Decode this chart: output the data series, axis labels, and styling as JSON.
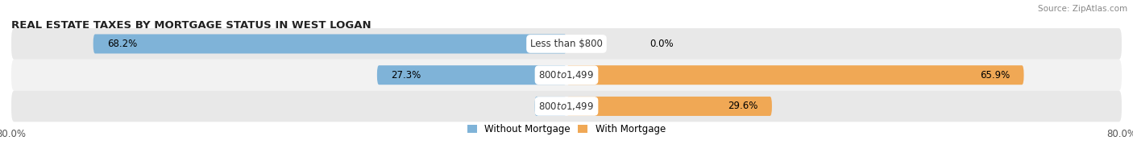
{
  "title": "REAL ESTATE TAXES BY MORTGAGE STATUS IN WEST LOGAN",
  "source": "Source: ZipAtlas.com",
  "rows": [
    {
      "label": "Less than $800",
      "without_mortgage": 68.2,
      "with_mortgage": 0.0,
      "without_label": "68.2%",
      "with_label": "0.0%"
    },
    {
      "label": "$800 to $1,499",
      "without_mortgage": 27.3,
      "with_mortgage": 65.9,
      "without_label": "27.3%",
      "with_label": "65.9%"
    },
    {
      "label": "$800 to $1,499",
      "without_mortgage": 4.6,
      "with_mortgage": 29.6,
      "without_label": "4.6%",
      "with_label": "29.6%"
    }
  ],
  "x_min": -80.0,
  "x_max": 80.0,
  "x_left_label": "80.0%",
  "x_right_label": "80.0%",
  "color_without": "#7fb3d8",
  "color_with": "#f0a855",
  "color_with_light": "#f5c98a",
  "color_bg_row_odd": "#e8e8e8",
  "color_bg_row_even": "#f2f2f2",
  "legend_without": "Without Mortgage",
  "legend_with": "With Mortgage",
  "title_fontsize": 9.5,
  "label_fontsize": 8.5,
  "tick_fontsize": 8.5
}
